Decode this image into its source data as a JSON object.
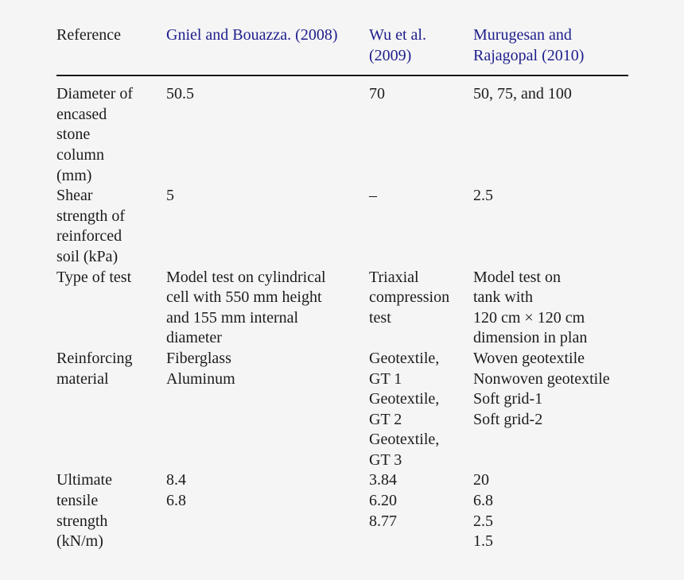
{
  "page": {
    "background": "#f5f5f6",
    "text_color": "#1c1c1c",
    "link_color": "#1e1e8c",
    "rule_color": "#1a1a1a"
  },
  "table": {
    "header": {
      "label": "Reference",
      "columns": [
        {
          "lines": [
            "Gniel and Bouazza. (2008)"
          ]
        },
        {
          "lines": [
            "Wu et al.",
            "(2009)"
          ]
        },
        {
          "lines": [
            "Murugesan and",
            "Rajagopal (2010)"
          ]
        }
      ]
    },
    "rows": [
      {
        "label_lines": [
          "Diameter of",
          "encased",
          "stone",
          "column",
          "(mm)"
        ],
        "cols": [
          [
            "50.5"
          ],
          [
            "70"
          ],
          [
            "50, 75, and 100"
          ]
        ]
      },
      {
        "label_lines": [
          "Shear",
          "strength of",
          "reinforced",
          "soil (kPa)"
        ],
        "cols": [
          [
            "5"
          ],
          [
            "–"
          ],
          [
            "2.5"
          ]
        ]
      },
      {
        "label_lines": [
          "Type of test"
        ],
        "cols": [
          [
            "Model test on cylindrical",
            "cell with 550 mm height",
            "and 155 mm internal",
            "diameter"
          ],
          [
            "Triaxial",
            "compression",
            "test"
          ],
          [
            "Model test on",
            "tank with",
            "120 cm × 120 cm",
            "dimension in plan"
          ]
        ]
      },
      {
        "label_lines": [
          "Reinforcing",
          "material"
        ],
        "cols": [
          [
            "Fiberglass",
            "Aluminum"
          ],
          [
            "Geotextile,",
            "GT 1",
            "Geotextile,",
            "GT 2",
            "Geotextile,",
            "GT 3"
          ],
          [
            "Woven geotextile",
            "Nonwoven geotextile",
            "Soft grid-1",
            "Soft grid-2"
          ]
        ]
      },
      {
        "label_lines": [
          "Ultimate",
          "tensile",
          "strength",
          "(kN/m)"
        ],
        "cols": [
          [
            "8.4",
            "6.8"
          ],
          [
            "3.84",
            "6.20",
            "8.77"
          ],
          [
            "20",
            "6.8",
            "2.5",
            "1.5"
          ]
        ]
      }
    ]
  }
}
